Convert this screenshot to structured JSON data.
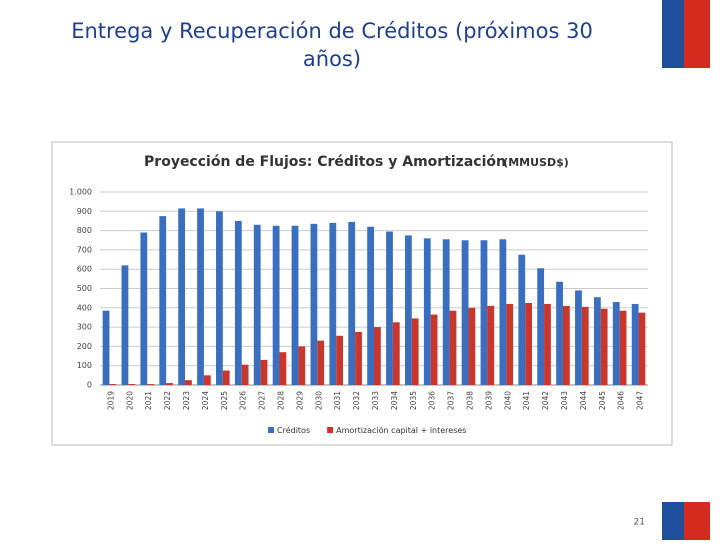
{
  "slide_title": "Entrega y Recuperación de Créditos (próximos 30 años)",
  "page_number": "21",
  "chart_data": {
    "type": "bar",
    "title": "Proyección de Flujos: Créditos y Amortización",
    "subtitle": "(MMUSD$)",
    "categories": [
      "2019",
      "2020",
      "2021",
      "2022",
      "2023",
      "2024",
      "2025",
      "2026",
      "2027",
      "2028",
      "2029",
      "2030",
      "2031",
      "2032",
      "2033",
      "2034",
      "2035",
      "2036",
      "2037",
      "2038",
      "2039",
      "2040",
      "2041",
      "2042",
      "2043",
      "2044",
      "2045",
      "2046",
      "2047"
    ],
    "series": [
      {
        "name": "Créditos",
        "color": "#3a6fbf",
        "values": [
          385,
          620,
          790,
          875,
          915,
          915,
          900,
          850,
          830,
          825,
          825,
          835,
          840,
          845,
          820,
          795,
          775,
          760,
          755,
          750,
          750,
          755,
          675,
          605,
          535,
          490,
          455,
          430,
          420
        ]
      },
      {
        "name": "Amortización capital + intereses",
        "color": "#c8372d",
        "values": [
          5,
          5,
          5,
          10,
          25,
          50,
          75,
          105,
          130,
          170,
          200,
          230,
          255,
          275,
          300,
          325,
          345,
          365,
          385,
          400,
          410,
          420,
          425,
          420,
          410,
          405,
          395,
          385,
          375
        ]
      }
    ],
    "ylim": [
      0,
      1000
    ],
    "yticks": [
      0,
      100,
      200,
      300,
      400,
      500,
      600,
      700,
      800,
      900,
      {
        "value": 1000,
        "label": "1.000"
      }
    ],
    "grid": true,
    "legend": "bottom"
  }
}
